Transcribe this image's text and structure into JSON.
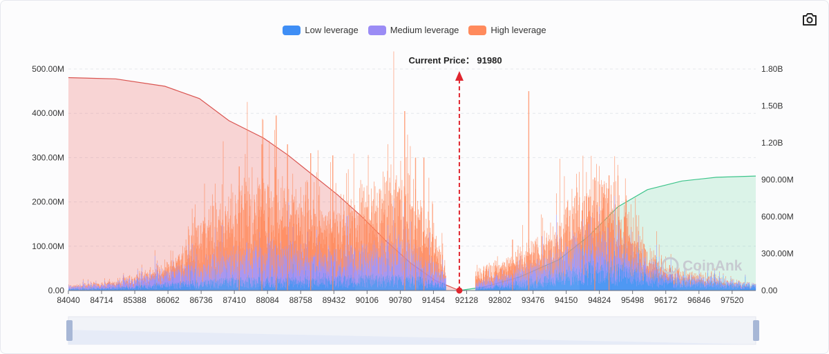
{
  "legend": {
    "items": [
      {
        "label": "Low leverage",
        "color": "#3f8ef5"
      },
      {
        "label": "Medium leverage",
        "color": "#9b8cf5"
      },
      {
        "label": "High leverage",
        "color": "#ff8a5c"
      }
    ]
  },
  "current_price_label": "Current Price： 91980",
  "watermark": "CoinAnk",
  "toolbar": {
    "screenshot_icon": "camera-icon"
  },
  "chart_data": {
    "type": "bar",
    "current_price": 91980,
    "x_ticks": [
      "84040",
      "84714",
      "85388",
      "86062",
      "86736",
      "87410",
      "88084",
      "88758",
      "89432",
      "90106",
      "90780",
      "91454",
      "92128",
      "92802",
      "93476",
      "94150",
      "94824",
      "95498",
      "96172",
      "96846",
      "97520"
    ],
    "xlim": [
      84040,
      98000
    ],
    "left_axis": {
      "ticks": [
        "0.00",
        "100.00M",
        "200.00M",
        "300.00M",
        "400.00M",
        "500.00M"
      ],
      "ylim": [
        0,
        500000000
      ]
    },
    "right_axis": {
      "ticks": [
        "0.00",
        "300.00M",
        "600.00M",
        "900.00M",
        "1.20B",
        "1.50B",
        "1.80B"
      ],
      "ylim": [
        0,
        1800000000
      ]
    },
    "grid": true,
    "legend_position": "top-center",
    "series": [
      {
        "name": "Low leverage",
        "color": "#3f8ef5",
        "profile": [
          [
            84040,
            5
          ],
          [
            85000,
            10
          ],
          [
            86000,
            20
          ],
          [
            87000,
            30
          ],
          [
            88000,
            35
          ],
          [
            89000,
            35
          ],
          [
            90000,
            40
          ],
          [
            91000,
            40
          ],
          [
            91500,
            25
          ],
          [
            92128,
            0
          ],
          [
            92400,
            10
          ],
          [
            93000,
            20
          ],
          [
            94000,
            45
          ],
          [
            94800,
            80
          ],
          [
            95500,
            60
          ],
          [
            96200,
            35
          ],
          [
            97000,
            25
          ],
          [
            98000,
            15
          ]
        ]
      },
      {
        "name": "Medium leverage",
        "color": "#9b8cf5",
        "profile": [
          [
            84040,
            8
          ],
          [
            85000,
            15
          ],
          [
            86000,
            40
          ],
          [
            86700,
            60
          ],
          [
            87500,
            90
          ],
          [
            88500,
            100
          ],
          [
            89300,
            75
          ],
          [
            90200,
            85
          ],
          [
            90800,
            105
          ],
          [
            91400,
            70
          ],
          [
            91700,
            20
          ],
          [
            92128,
            0
          ],
          [
            92300,
            15
          ],
          [
            93000,
            35
          ],
          [
            93800,
            60
          ],
          [
            94500,
            95
          ],
          [
            95000,
            90
          ],
          [
            95600,
            55
          ],
          [
            96200,
            20
          ],
          [
            98000,
            5
          ]
        ]
      },
      {
        "name": "High leverage",
        "color": "#ff8a5c",
        "profile": [
          [
            84040,
            2
          ],
          [
            85500,
            10
          ],
          [
            86200,
            30
          ],
          [
            86700,
            130
          ],
          [
            87500,
            180
          ],
          [
            88100,
            200
          ],
          [
            88800,
            170
          ],
          [
            89400,
            130
          ],
          [
            90000,
            150
          ],
          [
            90600,
            210
          ],
          [
            91100,
            180
          ],
          [
            91600,
            60
          ],
          [
            91800,
            0
          ],
          [
            92128,
            0
          ],
          [
            92300,
            40
          ],
          [
            93000,
            50
          ],
          [
            93800,
            80
          ],
          [
            94300,
            140
          ],
          [
            94800,
            180
          ],
          [
            95200,
            140
          ],
          [
            95700,
            60
          ],
          [
            96300,
            15
          ],
          [
            98000,
            0
          ]
        ]
      }
    ],
    "spikes": [
      {
        "x": 87500,
        "value": 280000000
      },
      {
        "x": 87960,
        "value": 330000000
      },
      {
        "x": 88250,
        "value": 395000000
      },
      {
        "x": 88480,
        "value": 330000000
      },
      {
        "x": 88950,
        "value": 310000000
      },
      {
        "x": 89400,
        "value": 305000000
      },
      {
        "x": 90860,
        "value": 405000000
      },
      {
        "x": 91080,
        "value": 300000000
      },
      {
        "x": 91250,
        "value": 300000000
      },
      {
        "x": 93380,
        "value": 450000000
      },
      {
        "x": 93050,
        "value": 115000000
      },
      {
        "x": 94720,
        "value": 255000000
      },
      {
        "x": 95010,
        "value": 260000000
      }
    ],
    "cumulative_short": [
      [
        84040,
        1730000000
      ],
      [
        85000,
        1720000000
      ],
      [
        86000,
        1660000000
      ],
      [
        86700,
        1560000000
      ],
      [
        87300,
        1380000000
      ],
      [
        88000,
        1240000000
      ],
      [
        88500,
        1100000000
      ],
      [
        89000,
        940000000
      ],
      [
        89500,
        780000000
      ],
      [
        90000,
        600000000
      ],
      [
        90500,
        400000000
      ],
      [
        91000,
        220000000
      ],
      [
        91500,
        80000000
      ],
      [
        91980,
        0
      ]
    ],
    "cumulative_long": [
      [
        91980,
        0
      ],
      [
        92500,
        30000000
      ],
      [
        93200,
        110000000
      ],
      [
        94000,
        250000000
      ],
      [
        94600,
        440000000
      ],
      [
        95200,
        680000000
      ],
      [
        95800,
        820000000
      ],
      [
        96500,
        890000000
      ],
      [
        97200,
        920000000
      ],
      [
        98000,
        930000000
      ]
    ]
  }
}
